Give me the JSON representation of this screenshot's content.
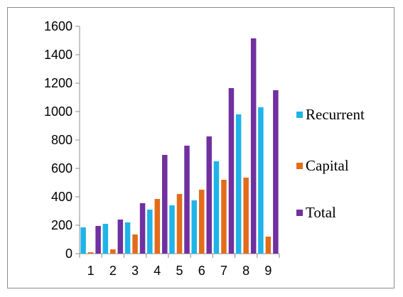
{
  "chart_data": {
    "type": "bar",
    "title": "",
    "xlabel": "",
    "ylabel": "",
    "categories": [
      "1",
      "2",
      "3",
      "4",
      "5",
      "6",
      "7",
      "8",
      "9"
    ],
    "ylim": [
      0,
      1600
    ],
    "yticks": [
      0,
      200,
      400,
      600,
      800,
      1000,
      1200,
      1400,
      1600
    ],
    "grid": false,
    "legend_position": "right",
    "series": [
      {
        "name": "Recurrent",
        "color": "#1fb4e8",
        "values": [
          185,
          210,
          220,
          310,
          340,
          375,
          650,
          980,
          1030
        ]
      },
      {
        "name": "Capital",
        "color": "#e36c1b",
        "values": [
          10,
          30,
          135,
          385,
          420,
          450,
          520,
          535,
          120
        ]
      },
      {
        "name": "Total",
        "color": "#7030a0",
        "values": [
          195,
          240,
          355,
          695,
          760,
          825,
          1165,
          1515,
          1150
        ]
      }
    ]
  }
}
